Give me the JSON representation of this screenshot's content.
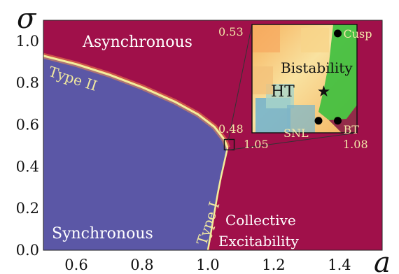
{
  "chart_data": {
    "type": "heatmap",
    "xlabel": "a",
    "ylabel": "σ",
    "xlim": [
      0.5,
      1.53
    ],
    "ylim": [
      0.0,
      1.1
    ],
    "x_ticks": [
      "0.6",
      "0.8",
      "1.0",
      "1.2",
      "1.4"
    ],
    "y_ticks": [
      "0.0",
      "0.2",
      "0.4",
      "0.6",
      "0.8",
      "1.0"
    ],
    "regions": [
      {
        "label": "Asynchronous",
        "color": "#a0104a"
      },
      {
        "label": "Synchronous",
        "color": "#5b57a6"
      },
      {
        "label": "Collective Excitability",
        "color": "#a0104a"
      }
    ],
    "region_text": {
      "asynchronous": "Asynchronous",
      "synchronous": "Synchronous",
      "collective_1": "Collective",
      "collective_2": "Excitability"
    },
    "boundaries": [
      {
        "label": "Type II",
        "points": [
          [
            0.5,
            0.93
          ],
          [
            0.6,
            0.89
          ],
          [
            0.7,
            0.84
          ],
          [
            0.8,
            0.78
          ],
          [
            0.9,
            0.71
          ],
          [
            0.97,
            0.65
          ],
          [
            1.02,
            0.59
          ],
          [
            1.05,
            0.53
          ],
          [
            1.06,
            0.49
          ]
        ]
      },
      {
        "label": "Type I",
        "points": [
          [
            1.06,
            0.49
          ],
          [
            1.05,
            0.42
          ],
          [
            1.04,
            0.35
          ],
          [
            1.03,
            0.27
          ],
          [
            1.02,
            0.18
          ],
          [
            1.01,
            0.09
          ],
          [
            1.0,
            0.0
          ]
        ]
      }
    ],
    "zoom_box": {
      "x": [
        1.05,
        1.08
      ],
      "y": [
        0.48,
        0.53
      ]
    },
    "inset": {
      "x_range_labels": [
        "1.05",
        "1.08"
      ],
      "y_range_labels": [
        "0.48",
        "0.53"
      ],
      "regions": [
        "Bistability",
        "HT"
      ],
      "points": [
        {
          "label": "Cusp",
          "a": 1.0745,
          "sigma": 0.5275,
          "marker": "circle"
        },
        {
          "label": "SNL",
          "a": 1.069,
          "sigma": 0.484,
          "marker": "circle"
        },
        {
          "label": "BT",
          "a": 1.0745,
          "sigma": 0.484,
          "marker": "circle"
        },
        {
          "label": "",
          "a": 1.0705,
          "sigma": 0.4985,
          "marker": "star"
        }
      ]
    },
    "colors": {
      "async": "#a0104a",
      "sync": "#5b57a6",
      "edge": "#f4ee9b",
      "inset_green": "#3fbf3f"
    }
  }
}
